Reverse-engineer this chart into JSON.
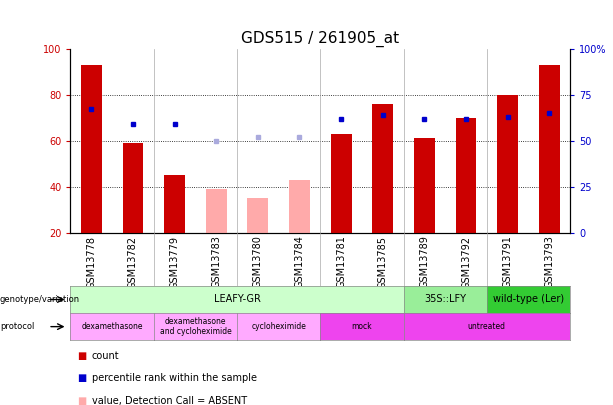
{
  "title": "GDS515 / 261905_at",
  "samples": [
    "GSM13778",
    "GSM13782",
    "GSM13779",
    "GSM13783",
    "GSM13780",
    "GSM13784",
    "GSM13781",
    "GSM13785",
    "GSM13789",
    "GSM13792",
    "GSM13791",
    "GSM13793"
  ],
  "count_values": [
    93,
    59,
    45,
    null,
    null,
    null,
    63,
    76,
    61,
    70,
    80,
    93
  ],
  "count_absent": [
    null,
    null,
    null,
    39,
    35,
    43,
    null,
    null,
    null,
    null,
    null,
    null
  ],
  "rank_values": [
    67,
    59,
    59,
    null,
    null,
    null,
    62,
    64,
    62,
    62,
    63,
    65
  ],
  "rank_absent": [
    null,
    null,
    null,
    50,
    52,
    52,
    null,
    null,
    null,
    null,
    null,
    null
  ],
  "ylim": [
    20,
    100
  ],
  "y2lim": [
    0,
    100
  ],
  "yticks": [
    20,
    40,
    60,
    80,
    100
  ],
  "y2ticks": [
    0,
    25,
    50,
    75,
    100
  ],
  "y2ticklabels": [
    "0",
    "25",
    "50",
    "75",
    "100%"
  ],
  "genotype_groups": [
    {
      "label": "LEAFY-GR",
      "start": 0,
      "end": 8,
      "color": "#ccffcc"
    },
    {
      "label": "35S::LFY",
      "start": 8,
      "end": 10,
      "color": "#99ee99"
    },
    {
      "label": "wild-type (Ler)",
      "start": 10,
      "end": 12,
      "color": "#33cc33"
    }
  ],
  "protocol_groups": [
    {
      "label": "dexamethasone",
      "start": 0,
      "end": 2,
      "color": "#ffaaff"
    },
    {
      "label": "dexamethasone\nand cycloheximide",
      "start": 2,
      "end": 4,
      "color": "#ffaaff"
    },
    {
      "label": "cycloheximide",
      "start": 4,
      "end": 6,
      "color": "#ffaaff"
    },
    {
      "label": "mock",
      "start": 6,
      "end": 8,
      "color": "#ee44ee"
    },
    {
      "label": "untreated",
      "start": 8,
      "end": 12,
      "color": "#ee44ee"
    }
  ],
  "bar_width": 0.5,
  "count_color": "#cc0000",
  "count_absent_color": "#ffaaaa",
  "rank_color": "#0000cc",
  "rank_absent_color": "#aaaadd",
  "background_color": "#ffffff",
  "xtick_bg": "#dddddd",
  "title_fontsize": 11,
  "tick_fontsize": 7,
  "label_fontsize": 7
}
